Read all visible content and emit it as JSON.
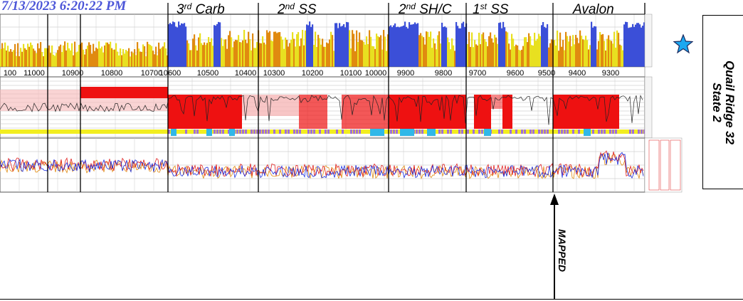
{
  "timestamp": "7/13/2023 6:20:22 PM",
  "zones": [
    {
      "base": "3",
      "sup": "rd",
      "rest": " Carb"
    },
    {
      "base": "2",
      "sup": "nd",
      "rest": " SS"
    },
    {
      "base": "2",
      "sup": "nd",
      "rest": " SH/C"
    },
    {
      "base": "1",
      "sup": "st",
      "rest": " SS"
    },
    {
      "base": "Avalon",
      "sup": "",
      "rest": ""
    }
  ],
  "depth_ticks": [
    "100",
    "11000",
    "10900",
    "10800",
    "10700",
    "10600",
    "10500",
    "10400",
    "10300",
    "10200",
    "10100",
    "10000",
    "9900",
    "9800",
    "9700",
    "9600",
    "9500",
    "9400",
    "9300"
  ],
  "well_name_line1": "Quail Ridge 32",
  "well_name_line2": "State 2",
  "mapped_label": "MAPPED",
  "colors": {
    "gr_blue": "#3b4fd8",
    "gr_yellow": "#e8e020",
    "gr_orange": "#e08a10",
    "resistivity_red": "#ee1111",
    "resistivity_pink": "#f6b8b8",
    "neutron_yellow": "#f2ee20",
    "neutron_purple": "#a070d8",
    "neutron_cyan": "#30b8e8",
    "curve_red": "#e02020",
    "curve_blue": "#1a2ee0",
    "star_blue": "#1ca8f0",
    "timestamp_blue": "#4b55d8"
  }
}
